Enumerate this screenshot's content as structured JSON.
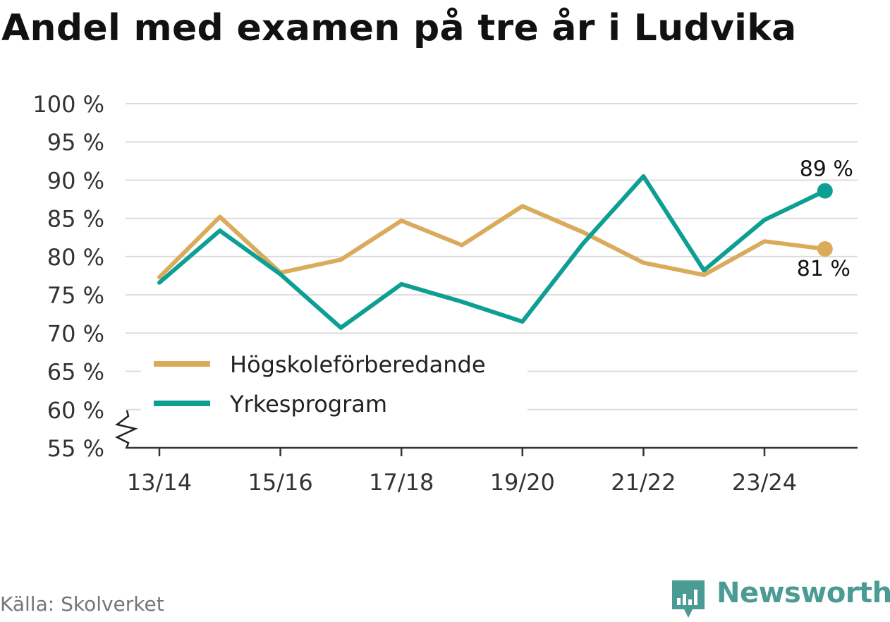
{
  "page": {
    "title": "Andel med examen på tre år i Ludvika",
    "source": "Källa: Skolverket",
    "brand": "Newsworthy"
  },
  "colors": {
    "hogskole": "#d9ab5a",
    "yrke": "#0d9f94",
    "grid": "#dcdcdc",
    "axis": "#333333",
    "logo": "#4a9b94"
  },
  "icons": {
    "logo": "newsworthy-logo-icon",
    "axis_break": "axis-break-icon"
  },
  "chart_data": {
    "type": "line",
    "title": "Andel med examen på tre år i Ludvika",
    "x": [
      "13/14",
      "14/15",
      "15/16",
      "16/17",
      "17/18",
      "18/19",
      "19/20",
      "20/21",
      "21/22",
      "22/23",
      "23/24",
      "24/25"
    ],
    "x_tick_labels": [
      "13/14",
      "15/16",
      "17/18",
      "19/20",
      "21/22",
      "23/24"
    ],
    "y_tick_labels": [
      "55 %",
      "60 %",
      "65 %",
      "70 %",
      "75 %",
      "80 %",
      "85 %",
      "90 %",
      "95 %",
      "100 %"
    ],
    "ylim": [
      55,
      100
    ],
    "y_axis_break": true,
    "grid": true,
    "legend_position": "bottom-left",
    "series": [
      {
        "name": "Högskoleförberedande",
        "values": [
          77.3,
          85.2,
          77.9,
          79.6,
          84.7,
          81.5,
          86.6,
          83.2,
          79.2,
          77.6,
          82.0,
          81.0
        ],
        "end_label": "81 %"
      },
      {
        "name": "Yrkesprogram",
        "values": [
          76.6,
          83.4,
          77.7,
          70.7,
          76.4,
          74.1,
          71.5,
          81.7,
          90.5,
          78.2,
          84.8,
          88.6
        ],
        "end_label": "89 %"
      }
    ]
  }
}
